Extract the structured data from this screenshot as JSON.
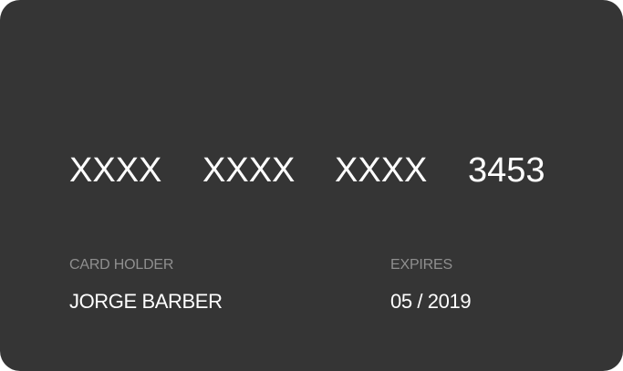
{
  "card": {
    "number_groups": [
      "XXXX",
      "XXXX",
      "XXXX",
      "3453"
    ],
    "holder_label": "CARD HOLDER",
    "holder_name": "JORGE BARBER",
    "expires_label": "EXPIRES",
    "expires_value": "05 / 2019"
  },
  "colors": {
    "card_background": "#353535",
    "primary_text": "#ffffff",
    "secondary_text": "#8f8f8f"
  }
}
